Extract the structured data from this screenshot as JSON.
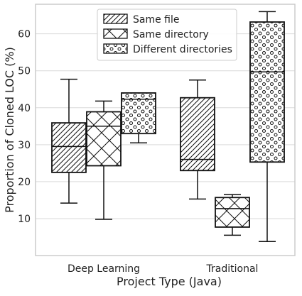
{
  "chart_data": {
    "type": "boxplot",
    "title": "",
    "xlabel": "Project Type (Java)",
    "ylabel": "Proportion of Cloned LOC (%)",
    "ylim": [
      0,
      68
    ],
    "yticks": [
      10,
      20,
      30,
      40,
      50,
      60
    ],
    "categories": [
      "Deep Learning",
      "Traditional"
    ],
    "grid": "horizontal",
    "legend_position": "top-center",
    "series": [
      {
        "name": "Same file",
        "pattern": "diagonal-hatch",
        "boxes": [
          {
            "category": "Deep Learning",
            "whisker_low": 14.2,
            "q1": 22.5,
            "median": 29.5,
            "q3": 35.9,
            "whisker_high": 47.7
          },
          {
            "category": "Traditional",
            "whisker_low": 15.3,
            "q1": 23.0,
            "median": 26.0,
            "q3": 42.7,
            "whisker_high": 47.5
          }
        ]
      },
      {
        "name": "Same directory",
        "pattern": "cross-hatch",
        "boxes": [
          {
            "category": "Deep Learning",
            "whisker_low": 9.8,
            "q1": 24.3,
            "median": 35.0,
            "q3": 38.9,
            "whisker_high": 41.8
          },
          {
            "category": "Traditional",
            "whisker_low": 5.5,
            "q1": 7.7,
            "median": 12.7,
            "q3": 15.7,
            "whisker_high": 16.5
          }
        ]
      },
      {
        "name": "Different directories",
        "pattern": "circles",
        "boxes": [
          {
            "category": "Deep Learning",
            "whisker_low": 30.5,
            "q1": 33.0,
            "median": 42.3,
            "q3": 44.0,
            "whisker_high": 44.0
          },
          {
            "category": "Traditional",
            "whisker_low": 3.8,
            "q1": 25.3,
            "median": 49.7,
            "q3": 63.2,
            "whisker_high": 66.0
          }
        ]
      }
    ],
    "colors": {
      "frame": "#cccccc",
      "grid": "#d9d9d9",
      "box_stroke": "#111111",
      "box_fill": "#ffffff"
    }
  }
}
